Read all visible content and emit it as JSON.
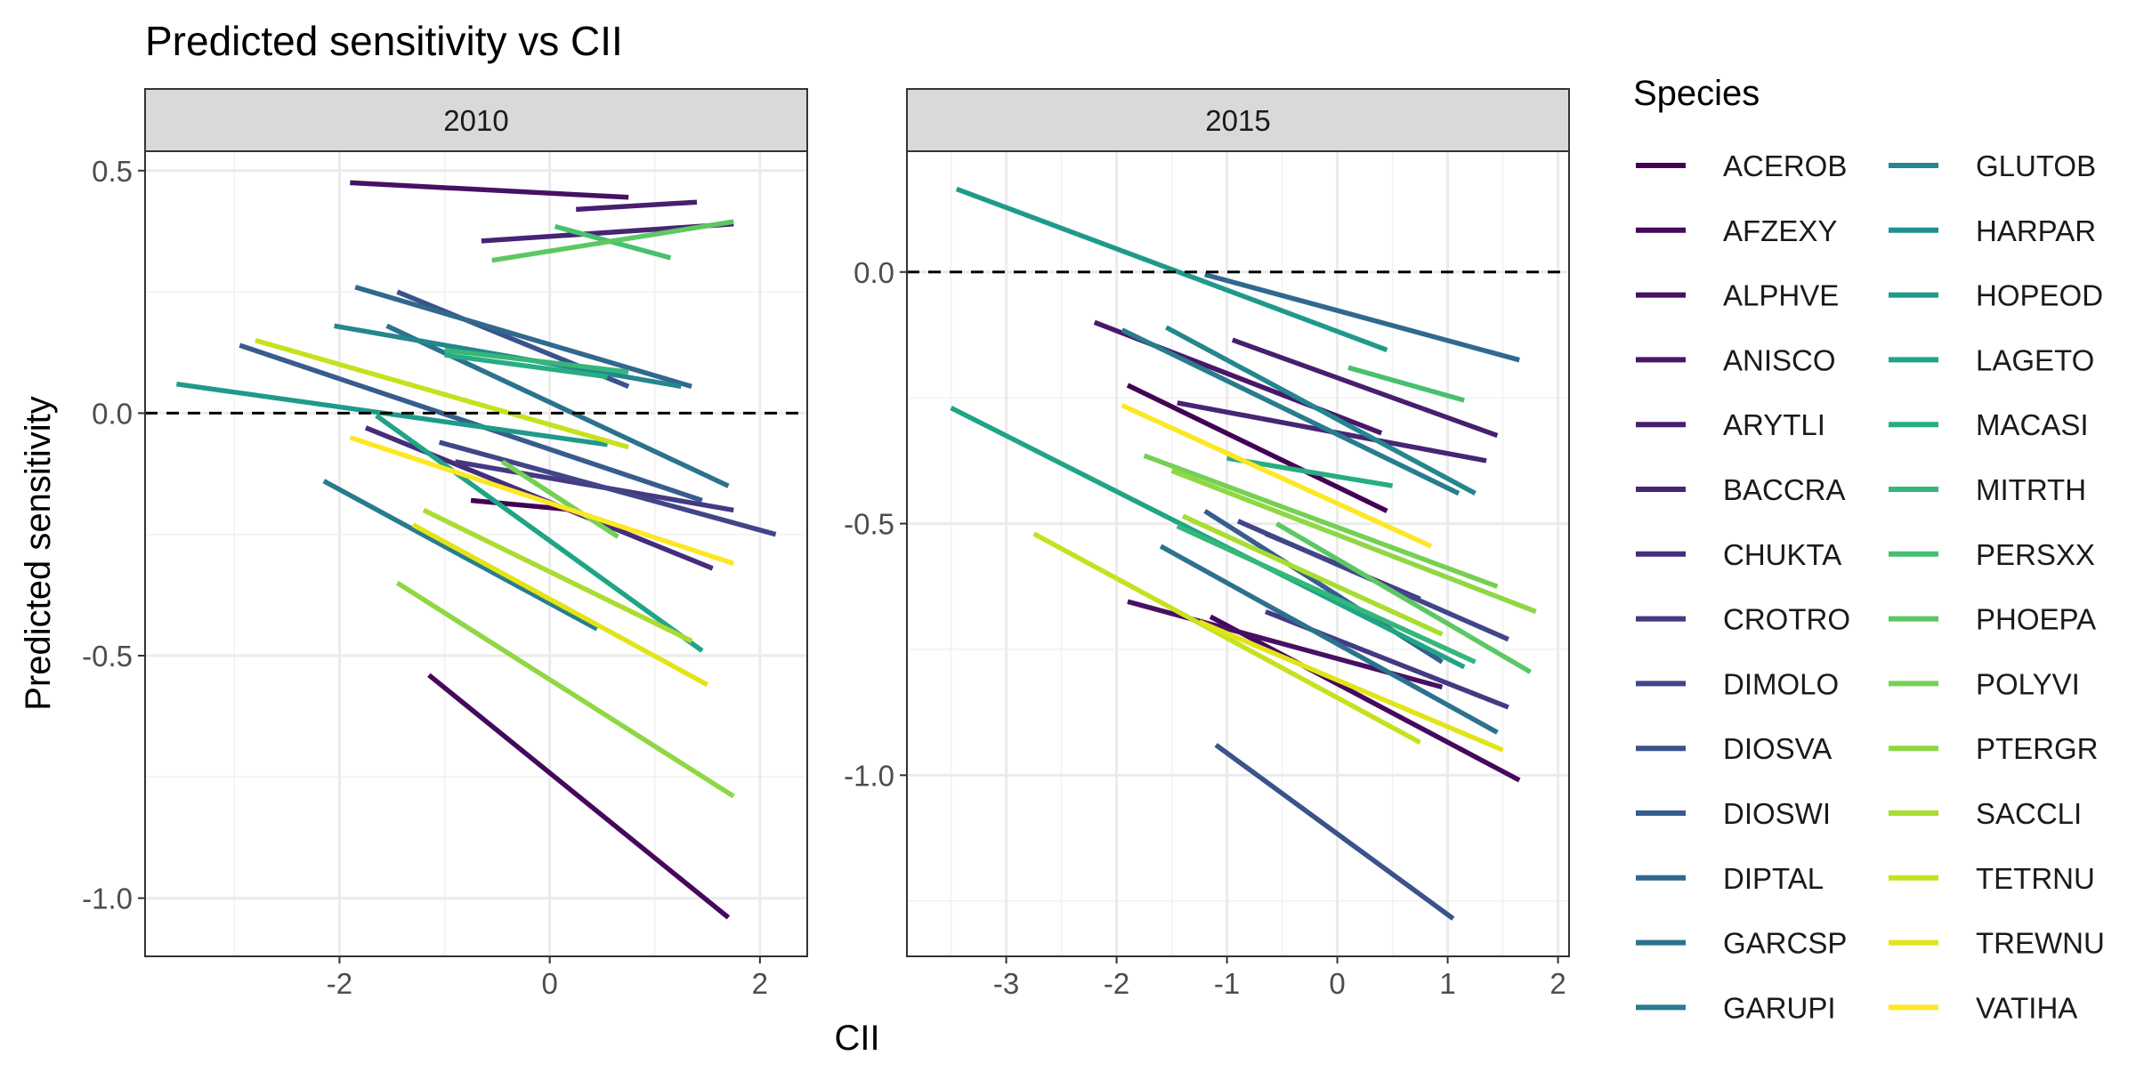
{
  "chart_data": {
    "type": "line",
    "title": "Predicted sensitivity vs CII",
    "xlabel": "CII",
    "ylabel": "Predicted sensitivity",
    "grid": true,
    "reference_line": {
      "y": 0,
      "style": "dashed"
    },
    "legend": {
      "title": "Species",
      "placement": "right",
      "entries": [
        "ACEROB",
        "AFZEXY",
        "ALPHVE",
        "ANISCO",
        "ARYTLI",
        "BACCRA",
        "CHUKTA",
        "CROTRO",
        "DIMOLO",
        "DIOSVA",
        "DIOSWI",
        "DIPTAL",
        "GARCSP",
        "GARUPI",
        "GLUTOB",
        "HARPAR",
        "HOPEOD",
        "LAGETO",
        "MACASI",
        "MITRTH",
        "PERSXX",
        "PHOEPA",
        "POLYVI",
        "PTERGR",
        "SACCLI",
        "TETRNU",
        "TREWNU",
        "VATIHA"
      ],
      "colors": [
        "#440154",
        "#46085C",
        "#471063",
        "#481769",
        "#481E6F",
        "#472575",
        "#462C7B",
        "#443A83",
        "#404688",
        "#3B528B",
        "#365D8D",
        "#31688E",
        "#2C728E",
        "#287C8E",
        "#24868E",
        "#21908D",
        "#1F9A8A",
        "#20A486",
        "#27AD81",
        "#35B779",
        "#47C06F",
        "#5DC863",
        "#75D054",
        "#8FD744",
        "#AADC32",
        "#C7E020",
        "#E3E418",
        "#FDE725"
      ]
    },
    "facets": [
      {
        "label": "2010",
        "xlim": [
          -3.85,
          2.45
        ],
        "ylim": [
          -1.12,
          0.54
        ],
        "xticks": [
          -2,
          0,
          2
        ],
        "xtick_labels": [
          "-2",
          "0",
          "2"
        ],
        "yticks": [
          -1.0,
          -0.5,
          0.0,
          0.5
        ],
        "ytick_labels": [
          "-1.0",
          "-0.5",
          "0.0",
          "0.5"
        ],
        "series": [
          {
            "species": "ACEROB",
            "points": [
              [
                -0.75,
                -0.18
              ],
              [
                0.25,
                -0.2
              ]
            ]
          },
          {
            "species": "AFZEXY",
            "points": [
              [
                -1.15,
                -0.54
              ],
              [
                1.7,
                -1.04
              ]
            ]
          },
          {
            "species": "ALPHVE",
            "points": [
              [
                -1.9,
                0.475
              ],
              [
                0.75,
                0.445
              ]
            ]
          },
          {
            "species": "ARYTLI",
            "points": [
              [
                0.25,
                0.42
              ],
              [
                1.4,
                0.435
              ]
            ]
          },
          {
            "species": "BACCRA",
            "points": [
              [
                -0.65,
                0.355
              ],
              [
                1.75,
                0.39
              ]
            ]
          },
          {
            "species": "CHUKTA",
            "points": [
              [
                -1.75,
                -0.03
              ],
              [
                1.55,
                -0.32
              ]
            ]
          },
          {
            "species": "CROTRO",
            "points": [
              [
                -0.9,
                -0.1
              ],
              [
                1.75,
                -0.2
              ]
            ]
          },
          {
            "species": "DIMOLO",
            "points": [
              [
                -1.05,
                -0.06
              ],
              [
                2.15,
                -0.25
              ]
            ]
          },
          {
            "species": "DIOSVA",
            "points": [
              [
                -1.45,
                0.25
              ],
              [
                0.75,
                0.055
              ]
            ]
          },
          {
            "species": "DIOSWI",
            "points": [
              [
                -2.95,
                0.14
              ],
              [
                1.45,
                -0.18
              ]
            ]
          },
          {
            "species": "DIPTAL",
            "points": [
              [
                -1.85,
                0.26
              ],
              [
                1.35,
                0.055
              ]
            ]
          },
          {
            "species": "GARCSP",
            "points": [
              [
                -1.55,
                0.18
              ],
              [
                1.7,
                -0.15
              ]
            ]
          },
          {
            "species": "GARUPI",
            "points": [
              [
                -2.15,
                -0.14
              ],
              [
                0.45,
                -0.445
              ]
            ]
          },
          {
            "species": "GLUTOB",
            "points": [
              [
                -2.05,
                0.18
              ],
              [
                1.25,
                0.055
              ]
            ]
          },
          {
            "species": "HOPEOD",
            "points": [
              [
                -3.55,
                0.06
              ],
              [
                0.55,
                -0.065
              ]
            ]
          },
          {
            "species": "LAGETO",
            "points": [
              [
                -1.65,
                -0.005
              ],
              [
                1.45,
                -0.49
              ]
            ]
          },
          {
            "species": "MACASI",
            "points": [
              [
                -1.0,
                0.12
              ],
              [
                0.55,
                0.075
              ]
            ]
          },
          {
            "species": "MITRTH",
            "points": [
              [
                -1.0,
                0.13
              ],
              [
                0.75,
                0.085
              ]
            ]
          },
          {
            "species": "PERSXX",
            "points": [
              [
                0.05,
                0.385
              ],
              [
                1.15,
                0.32
              ]
            ]
          },
          {
            "species": "PHOEPA",
            "points": [
              [
                -0.55,
                0.315
              ],
              [
                1.75,
                0.395
              ]
            ]
          },
          {
            "species": "POLYVI",
            "points": [
              [
                -0.45,
                -0.1
              ],
              [
                0.65,
                -0.255
              ]
            ]
          },
          {
            "species": "PTERGR",
            "points": [
              [
                -1.45,
                -0.35
              ],
              [
                1.75,
                -0.79
              ]
            ]
          },
          {
            "species": "SACCLI",
            "points": [
              [
                -1.2,
                -0.2
              ],
              [
                1.35,
                -0.47
              ]
            ]
          },
          {
            "species": "TETRNU",
            "points": [
              [
                -2.8,
                0.15
              ],
              [
                0.75,
                -0.07
              ]
            ]
          },
          {
            "species": "TREWNU",
            "points": [
              [
                -1.3,
                -0.23
              ],
              [
                1.5,
                -0.56
              ]
            ]
          },
          {
            "species": "VATIHA",
            "points": [
              [
                -1.9,
                -0.05
              ],
              [
                1.75,
                -0.31
              ]
            ]
          }
        ]
      },
      {
        "label": "2015",
        "xlim": [
          -3.9,
          2.1
        ],
        "ylim": [
          -1.36,
          0.24
        ],
        "xticks": [
          -3,
          -2,
          -1,
          0,
          1,
          2
        ],
        "xtick_labels": [
          "-3",
          "-2",
          "-1",
          "0",
          "1",
          "2"
        ],
        "yticks": [
          -1.0,
          -0.5,
          0.0
        ],
        "ytick_labels": [
          "-1.0",
          "-0.5",
          "0.0"
        ],
        "series": [
          {
            "species": "ACEROB",
            "points": [
              [
                -1.9,
                -0.225
              ],
              [
                0.45,
                -0.475
              ]
            ]
          },
          {
            "species": "AFZEXY",
            "points": [
              [
                -1.15,
                -0.685
              ],
              [
                1.65,
                -1.01
              ]
            ]
          },
          {
            "species": "ALPHVE",
            "points": [
              [
                -1.9,
                -0.655
              ],
              [
                0.95,
                -0.825
              ]
            ]
          },
          {
            "species": "ANISCO",
            "points": [
              [
                -2.2,
                -0.1
              ],
              [
                0.4,
                -0.32
              ]
            ]
          },
          {
            "species": "ARYTLI",
            "points": [
              [
                -0.95,
                -0.135
              ],
              [
                1.45,
                -0.325
              ]
            ]
          },
          {
            "species": "BACCRA",
            "points": [
              [
                -1.45,
                -0.26
              ],
              [
                1.35,
                -0.375
              ]
            ]
          },
          {
            "species": "CHUKTA",
            "points": [
              [
                -0.65,
                -0.52
              ],
              [
                0.75,
                -0.65
              ]
            ]
          },
          {
            "species": "CROTRO",
            "points": [
              [
                -0.65,
                -0.675
              ],
              [
                1.55,
                -0.865
              ]
            ]
          },
          {
            "species": "DIMOLO",
            "points": [
              [
                -0.9,
                -0.495
              ],
              [
                1.55,
                -0.73
              ]
            ]
          },
          {
            "species": "DIOSVA",
            "points": [
              [
                -1.1,
                -0.94
              ],
              [
                1.05,
                -1.285
              ]
            ]
          },
          {
            "species": "DIOSWI",
            "points": [
              [
                -1.2,
                -0.475
              ],
              [
                0.95,
                -0.775
              ]
            ]
          },
          {
            "species": "DIPTAL",
            "points": [
              [
                -1.2,
                -0.005
              ],
              [
                1.65,
                -0.175
              ]
            ]
          },
          {
            "species": "GARCSP",
            "points": [
              [
                -1.6,
                -0.545
              ],
              [
                1.45,
                -0.915
              ]
            ]
          },
          {
            "species": "GARUPI",
            "points": [
              [
                -1.95,
                -0.115
              ],
              [
                1.1,
                -0.44
              ]
            ]
          },
          {
            "species": "GLUTOB",
            "points": [
              [
                -1.55,
                -0.11
              ],
              [
                1.25,
                -0.44
              ]
            ]
          },
          {
            "species": "HOPEOD",
            "points": [
              [
                -3.45,
                0.165
              ],
              [
                0.45,
                -0.155
              ]
            ]
          },
          {
            "species": "LAGETO",
            "points": [
              [
                -3.5,
                -0.27
              ],
              [
                1.15,
                -0.785
              ]
            ]
          },
          {
            "species": "MACASI",
            "points": [
              [
                -1.0,
                -0.37
              ],
              [
                0.5,
                -0.425
              ]
            ]
          },
          {
            "species": "MITRTH",
            "points": [
              [
                -1.45,
                -0.505
              ],
              [
                1.25,
                -0.775
              ]
            ]
          },
          {
            "species": "PERSXX",
            "points": [
              [
                0.1,
                -0.19
              ],
              [
                1.15,
                -0.255
              ]
            ]
          },
          {
            "species": "PHOEPA",
            "points": [
              [
                -0.55,
                -0.5
              ],
              [
                1.75,
                -0.795
              ]
            ]
          },
          {
            "species": "POLYVI",
            "points": [
              [
                -1.75,
                -0.365
              ],
              [
                1.45,
                -0.625
              ]
            ]
          },
          {
            "species": "PTERGR",
            "points": [
              [
                -1.5,
                -0.395
              ],
              [
                1.8,
                -0.675
              ]
            ]
          },
          {
            "species": "SACCLI",
            "points": [
              [
                -1.4,
                -0.485
              ],
              [
                0.95,
                -0.72
              ]
            ]
          },
          {
            "species": "TETRNU",
            "points": [
              [
                -2.75,
                -0.52
              ],
              [
                0.75,
                -0.935
              ]
            ]
          },
          {
            "species": "TREWNU",
            "points": [
              [
                -1.25,
                -0.695
              ],
              [
                1.5,
                -0.95
              ]
            ]
          },
          {
            "species": "VATIHA",
            "points": [
              [
                -1.95,
                -0.265
              ],
              [
                0.85,
                -0.545
              ]
            ]
          }
        ]
      }
    ]
  }
}
